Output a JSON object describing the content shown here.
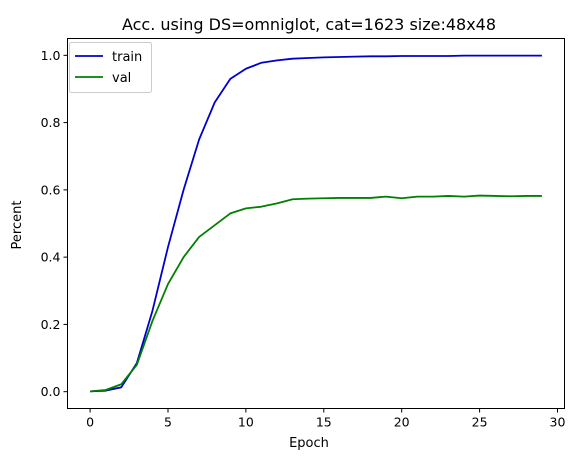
{
  "chart_data": {
    "type": "line",
    "title": "Acc. using DS=omniglot, cat=1623 size:48x48",
    "xlabel": "Epoch",
    "ylabel": "Percent",
    "xlim": [
      -1.45,
      30.45
    ],
    "ylim": [
      -0.05,
      1.05
    ],
    "xticks": [
      0,
      5,
      10,
      15,
      20,
      25,
      30
    ],
    "yticks": [
      0.0,
      0.2,
      0.4,
      0.6,
      0.8,
      1.0
    ],
    "xtick_labels": [
      "0",
      "5",
      "10",
      "15",
      "20",
      "25",
      "30"
    ],
    "ytick_labels": [
      "0.0",
      "0.2",
      "0.4",
      "0.6",
      "0.8",
      "1.0"
    ],
    "grid": false,
    "legend": "top-left",
    "x": [
      0,
      1,
      2,
      3,
      4,
      5,
      6,
      7,
      8,
      9,
      10,
      11,
      12,
      13,
      14,
      15,
      16,
      17,
      18,
      19,
      20,
      21,
      22,
      23,
      24,
      25,
      26,
      27,
      28,
      29
    ],
    "series": [
      {
        "name": "train",
        "color": "#0000cc",
        "values": [
          0.001,
          0.003,
          0.013,
          0.085,
          0.24,
          0.43,
          0.6,
          0.75,
          0.86,
          0.93,
          0.96,
          0.978,
          0.985,
          0.99,
          0.992,
          0.994,
          0.995,
          0.996,
          0.997,
          0.997,
          0.998,
          0.998,
          0.998,
          0.998,
          0.999,
          0.999,
          0.999,
          0.999,
          0.999,
          0.999
        ]
      },
      {
        "name": "val",
        "color": "#008000",
        "values": [
          0.001,
          0.005,
          0.022,
          0.08,
          0.21,
          0.32,
          0.4,
          0.46,
          0.495,
          0.53,
          0.545,
          0.55,
          0.56,
          0.572,
          0.574,
          0.575,
          0.576,
          0.576,
          0.576,
          0.58,
          0.575,
          0.58,
          0.58,
          0.582,
          0.58,
          0.583,
          0.582,
          0.581,
          0.582,
          0.582
        ]
      }
    ]
  }
}
